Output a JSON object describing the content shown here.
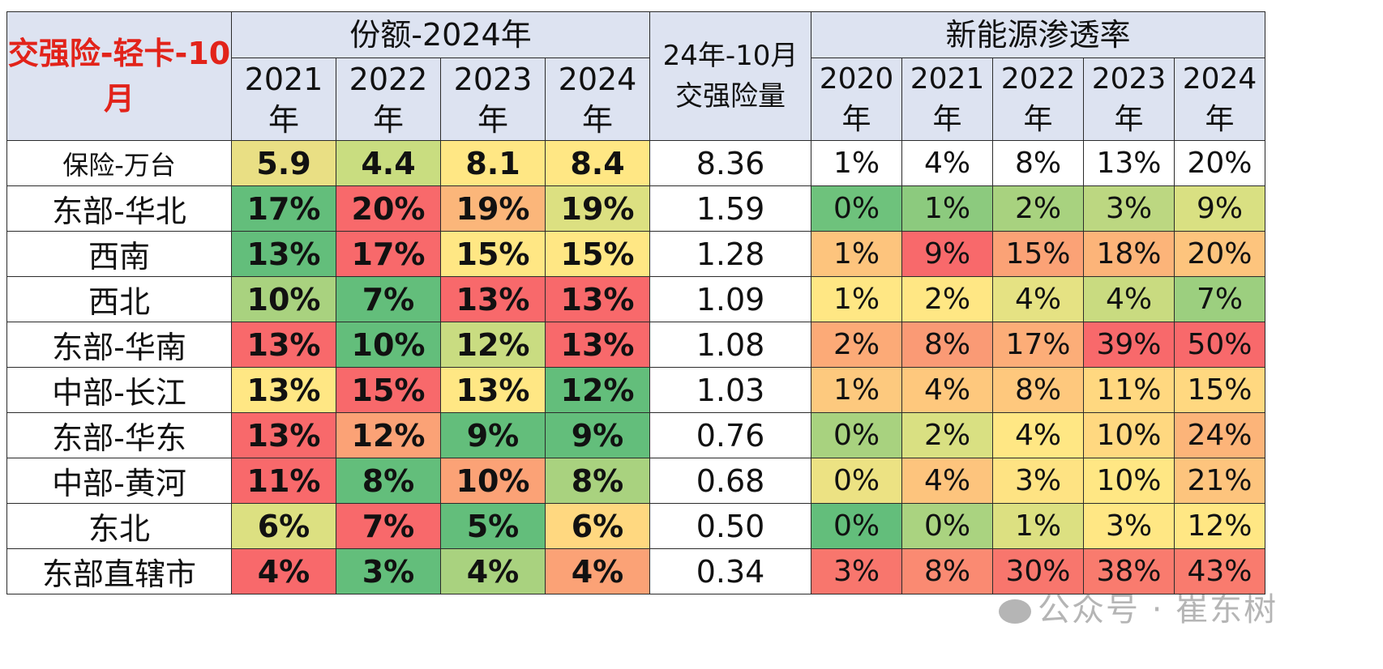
{
  "chart_data": {
    "type": "table",
    "title": "交强险-轻卡-10月",
    "group_share": "份额-2024年",
    "group_qty": "24年-10月交强险量",
    "group_qty_lines": [
      "24年-10月",
      "交强险量"
    ],
    "group_nev": "新能源渗透率",
    "share_years": [
      [
        "2021",
        "年"
      ],
      [
        "2022",
        "年"
      ],
      [
        "2023",
        "年"
      ],
      [
        "2024",
        "年"
      ]
    ],
    "nev_years": [
      [
        "2020",
        "年"
      ],
      [
        "2021",
        "年"
      ],
      [
        "2022",
        "年"
      ],
      [
        "2023",
        "年"
      ],
      [
        "2024",
        "年"
      ]
    ],
    "rows": [
      {
        "label": "保险-万台",
        "share": [
          "5.9",
          "4.4",
          "8.1",
          "8.4"
        ],
        "qty": "8.36",
        "nev": [
          "1%",
          "4%",
          "8%",
          "13%",
          "20%"
        ],
        "share_colors": [
          "#e9df84",
          "#c9dd80",
          "#ffe784",
          "#ffe784"
        ],
        "nev_colors": [
          "#ffffff",
          "#ffffff",
          "#ffffff",
          "#ffffff",
          "#ffffff"
        ]
      },
      {
        "label": "东部-华北",
        "share": [
          "17%",
          "20%",
          "19%",
          "19%"
        ],
        "qty": "1.59",
        "nev": [
          "0%",
          "1%",
          "2%",
          "3%",
          "9%"
        ],
        "share_colors": [
          "#63be7b",
          "#f8696b",
          "#fbb67a",
          "#dce081"
        ],
        "nev_colors": [
          "#6ec27c",
          "#8cca7e",
          "#a8d27f",
          "#bcd781",
          "#d9e082"
        ]
      },
      {
        "label": "西南",
        "share": [
          "13%",
          "17%",
          "15%",
          "15%"
        ],
        "qty": "1.28",
        "nev": [
          "1%",
          "9%",
          "15%",
          "18%",
          "20%"
        ],
        "share_colors": [
          "#63be7b",
          "#f8696b",
          "#ffe784",
          "#ffe784"
        ],
        "nev_colors": [
          "#fdc47d",
          "#f8696b",
          "#fba276",
          "#fcb479",
          "#fdc47d"
        ]
      },
      {
        "label": "西北",
        "share": [
          "10%",
          "7%",
          "13%",
          "13%"
        ],
        "qty": "1.09",
        "nev": [
          "1%",
          "2%",
          "4%",
          "4%",
          "7%"
        ],
        "share_colors": [
          "#a9d27f",
          "#63be7b",
          "#f8696b",
          "#f8696b"
        ],
        "nev_colors": [
          "#ffe784",
          "#ffe784",
          "#e5e283",
          "#c9db80",
          "#9ccf7f"
        ]
      },
      {
        "label": "东部-华南",
        "share": [
          "13%",
          "10%",
          "12%",
          "13%"
        ],
        "qty": "1.08",
        "nev": [
          "2%",
          "8%",
          "17%",
          "39%",
          "50%"
        ],
        "share_colors": [
          "#f8696b",
          "#63be7b",
          "#c9dc81",
          "#f8696b"
        ],
        "nev_colors": [
          "#fcaa77",
          "#fa9a75",
          "#fcad78",
          "#f8696b",
          "#f8696b"
        ]
      },
      {
        "label": "中部-长江",
        "share": [
          "13%",
          "15%",
          "13%",
          "12%"
        ],
        "qty": "1.03",
        "nev": [
          "1%",
          "4%",
          "8%",
          "11%",
          "15%"
        ],
        "share_colors": [
          "#ffe784",
          "#f8696b",
          "#ffe784",
          "#63be7b"
        ],
        "nev_colors": [
          "#fdc97e",
          "#fec87d",
          "#fec87d",
          "#ffd880",
          "#ffd880"
        ]
      },
      {
        "label": "东部-华东",
        "share": [
          "13%",
          "12%",
          "9%",
          "9%"
        ],
        "qty": "0.76",
        "nev": [
          "0%",
          "2%",
          "4%",
          "10%",
          "24%"
        ],
        "share_colors": [
          "#f8696b",
          "#fba276",
          "#63be7b",
          "#63be7b"
        ],
        "nev_colors": [
          "#a8d27f",
          "#d9e082",
          "#ffe784",
          "#ffd880",
          "#fcb479"
        ]
      },
      {
        "label": "中部-黄河",
        "share": [
          "11%",
          "8%",
          "10%",
          "8%"
        ],
        "qty": "0.68",
        "nev": [
          "0%",
          "4%",
          "3%",
          "10%",
          "21%"
        ],
        "share_colors": [
          "#f8696b",
          "#63be7b",
          "#fba276",
          "#a9d27f"
        ],
        "nev_colors": [
          "#ece283",
          "#fdc47d",
          "#fee383",
          "#ffe784",
          "#fdc47d"
        ]
      },
      {
        "label": "东北",
        "share": [
          "6%",
          "7%",
          "5%",
          "6%"
        ],
        "qty": "0.50",
        "nev": [
          "0%",
          "0%",
          "1%",
          "3%",
          "12%"
        ],
        "share_colors": [
          "#dce081",
          "#f8696b",
          "#63be7b",
          "#ffd880"
        ],
        "nev_colors": [
          "#63be7b",
          "#aad380",
          "#dce081",
          "#ffe784",
          "#ffe784"
        ]
      },
      {
        "label": "东部直辖市",
        "share": [
          "4%",
          "3%",
          "4%",
          "4%"
        ],
        "qty": "0.34",
        "nev": [
          "3%",
          "8%",
          "30%",
          "38%",
          "43%"
        ],
        "share_colors": [
          "#f8696b",
          "#63be7b",
          "#a9d27f",
          "#fba276"
        ],
        "nev_colors": [
          "#f8766d",
          "#fa8a72",
          "#f8766d",
          "#f97b6e",
          "#f97b6e"
        ]
      }
    ]
  },
  "watermark": "公众号 · 崔东树",
  "colors": {
    "header_bg": "#dde3f1",
    "title_red": "#e2231a",
    "border": "#2b2b2b"
  }
}
